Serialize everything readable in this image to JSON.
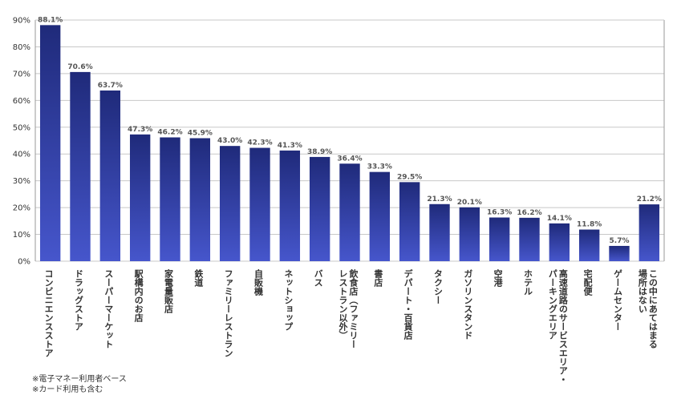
{
  "chart_data": {
    "type": "bar",
    "categories": [
      [
        "コンビニエンスストア"
      ],
      [
        "ドラッグストア"
      ],
      [
        "スーパーマーケット"
      ],
      [
        "駅構内のお店"
      ],
      [
        "家電量販店"
      ],
      [
        "鉄道"
      ],
      [
        "ファミリーレストラン"
      ],
      [
        "自販機"
      ],
      [
        "ネットショップ"
      ],
      [
        "バス"
      ],
      [
        "飲食店（ファミリー",
        "レストラン以外）"
      ],
      [
        "書店"
      ],
      [
        "デパート・百貨店"
      ],
      [
        "タクシー"
      ],
      [
        "ガソリンスタンド"
      ],
      [
        "空港"
      ],
      [
        "ホテル"
      ],
      [
        "高速道路のサービスエリア・",
        "パーキングエリア"
      ],
      [
        "宅配便"
      ],
      [
        "ゲームセンター"
      ],
      [
        "この中にあてはまる",
        "場所はない"
      ]
    ],
    "values": [
      88.1,
      70.6,
      63.7,
      47.3,
      46.2,
      45.9,
      43.0,
      42.3,
      41.3,
      38.9,
      36.4,
      33.3,
      29.5,
      21.3,
      20.1,
      16.3,
      16.2,
      14.1,
      11.8,
      5.7,
      21.2
    ],
    "value_labels": [
      "88.1%",
      "70.6%",
      "63.7%",
      "47.3%",
      "46.2%",
      "45.9%",
      "43.0%",
      "42.3%",
      "41.3%",
      "38.9%",
      "36.4%",
      "33.3%",
      "29.5%",
      "21.3%",
      "20.1%",
      "16.3%",
      "16.2%",
      "14.1%",
      "11.8%",
      "5.7%",
      "21.2%"
    ],
    "yticks": [
      "0%",
      "10%",
      "20%",
      "30%",
      "40%",
      "50%",
      "60%",
      "70%",
      "80%",
      "90%"
    ],
    "ylim": [
      0,
      90
    ],
    "grid": true,
    "colors": {
      "bar_top": "#1f2a7a",
      "bar_bottom": "#4656cc",
      "grid": "#c8c8c8",
      "axis": "#999999"
    }
  },
  "notes": [
    "※電子マネー利用者ベース",
    "※カード利用も含む"
  ]
}
